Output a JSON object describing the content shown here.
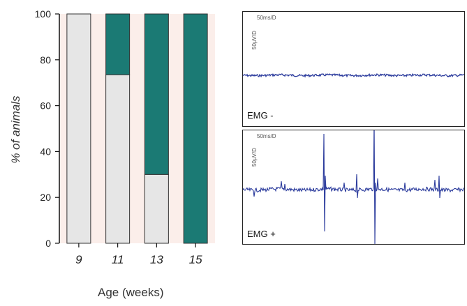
{
  "chart_data": [
    {
      "type": "bar",
      "stacked": true,
      "categories": [
        "9",
        "11",
        "13",
        "15"
      ],
      "series": [
        {
          "values": [
            100,
            73.5,
            30,
            0
          ],
          "color": "#e6e6e6"
        },
        {
          "values": [
            0,
            26.5,
            70,
            100
          ],
          "color": "#1b7a74"
        }
      ],
      "ylabel": "% of animals",
      "xlabel": "Age (weeks)",
      "ylim": [
        0,
        100
      ],
      "yticks": [
        0,
        20,
        40,
        60,
        80,
        100
      ],
      "grid": false
    }
  ],
  "panels": [
    {
      "label": "EMG -",
      "scale_time": "50ms/D",
      "scale_amp": "50µV/D"
    },
    {
      "label": "EMG +",
      "scale_time": "50ms/D",
      "scale_amp": "50µV/D"
    }
  ],
  "colors": {
    "trace": "#2a3a9c",
    "emg_positive": "#1b7a74",
    "emg_negative": "#e6e6e6"
  }
}
